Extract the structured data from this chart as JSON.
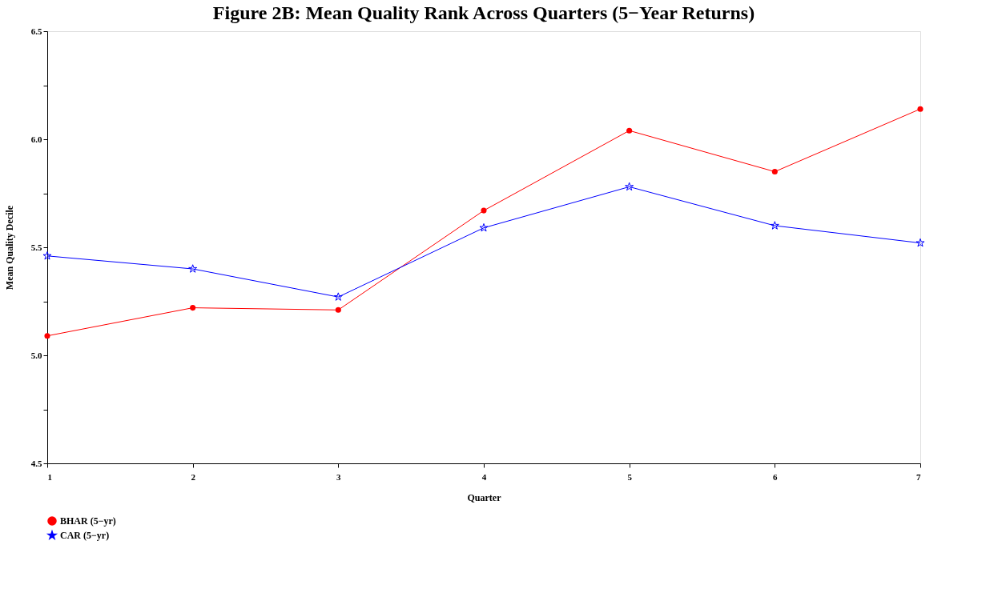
{
  "chart_data": {
    "type": "line",
    "title": "Figure 2B: Mean Quality Rank Across Quarters (5−Year Returns)",
    "xlabel": "Quarter",
    "ylabel": "Mean Quality Decile",
    "x": [
      1,
      2,
      3,
      4,
      5,
      6,
      7
    ],
    "series": [
      {
        "name": "BHAR (5−yr)",
        "color": "#ff0000",
        "marker": "circle",
        "values": [
          5.09,
          5.22,
          5.21,
          5.67,
          6.04,
          5.85,
          6.14
        ]
      },
      {
        "name": "CAR (5−yr)",
        "color": "#0000ff",
        "marker": "star",
        "values": [
          5.46,
          5.4,
          5.27,
          5.59,
          5.78,
          5.6,
          5.52
        ]
      }
    ],
    "xlim": [
      1,
      7
    ],
    "xticks": [
      1,
      2,
      3,
      4,
      5,
      6,
      7
    ],
    "ylim": [
      4.5,
      6.5
    ],
    "yticks": [
      {
        "value": 4.5,
        "label": "4.5"
      },
      {
        "value": 4.75,
        "label": null
      },
      {
        "value": 5,
        "label": "5.0"
      },
      {
        "value": 5.25,
        "label": null
      },
      {
        "value": 5.5,
        "label": "5.5"
      },
      {
        "value": 5.75,
        "label": null
      },
      {
        "value": 6,
        "label": "6.0"
      },
      {
        "value": 6.25,
        "label": null
      },
      {
        "value": 6.5,
        "label": "6.5"
      }
    ],
    "grid": false,
    "legend": "bottom",
    "line_style": "solid"
  }
}
